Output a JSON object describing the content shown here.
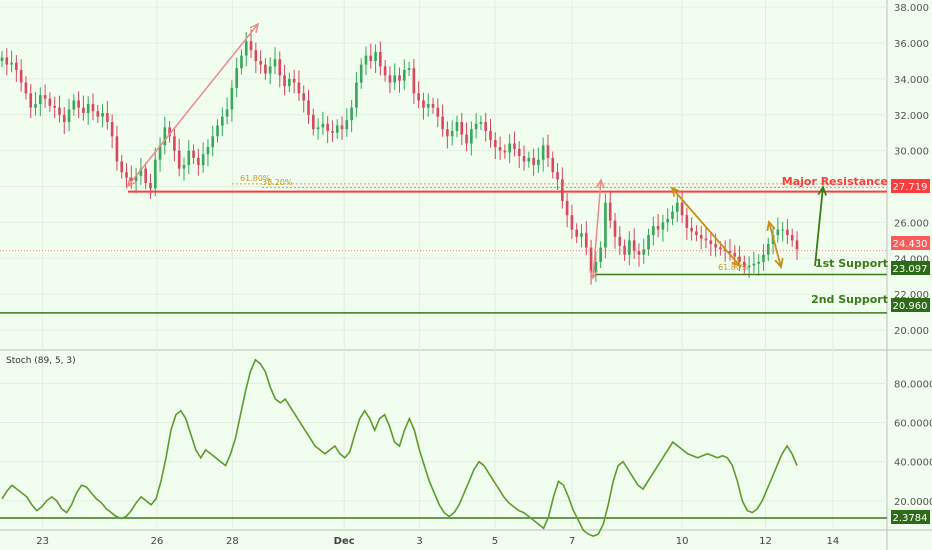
{
  "chart_data": {
    "type": "candlestick",
    "price_panel": {
      "y_ticks": [
        "38.000",
        "36.000",
        "34.000",
        "32.000",
        "30.000",
        "28.000",
        "26.000",
        "24.000",
        "22.000",
        "20.000"
      ],
      "ylim": [
        19.0,
        38.4
      ],
      "current_price": 24.43,
      "series_close": [
        35.2,
        34.8,
        34.9,
        34.5,
        33.8,
        33.2,
        32.4,
        32.6,
        33.1,
        32.9,
        32.5,
        32.4,
        32.0,
        31.6,
        32.3,
        32.8,
        32.4,
        32.1,
        32.6,
        32.2,
        31.9,
        32.1,
        31.6,
        30.8,
        29.4,
        28.8,
        28.5,
        28.3,
        28.6,
        29.0,
        28.2,
        27.9,
        29.5,
        30.3,
        31.3,
        30.8,
        30.0,
        29.0,
        29.2,
        30.0,
        29.6,
        29.2,
        29.8,
        30.2,
        30.8,
        31.4,
        31.9,
        32.3,
        33.5,
        34.6,
        35.3,
        36.1,
        35.6,
        35.0,
        34.8,
        34.3,
        34.7,
        35.1,
        34.2,
        33.6,
        34.0,
        33.8,
        33.2,
        32.8,
        32.0,
        31.2,
        31.3,
        31.5,
        31.1,
        31.0,
        31.4,
        31.2,
        31.7,
        32.4,
        33.8,
        34.8,
        35.3,
        35.0,
        35.5,
        34.7,
        34.2,
        33.8,
        34.2,
        33.9,
        34.5,
        34.6,
        33.2,
        32.8,
        32.4,
        32.6,
        32.4,
        31.9,
        31.2,
        30.8,
        31.1,
        31.6,
        30.9,
        30.4,
        31.2,
        31.5,
        31.6,
        31.1,
        30.6,
        30.2,
        30.0,
        29.9,
        30.4,
        30.1,
        29.7,
        29.4,
        29.6,
        29.2,
        29.5,
        30.3,
        29.6,
        28.8,
        28.4,
        27.2,
        26.4,
        25.6,
        25.2,
        25.4,
        24.6,
        23.2,
        23.8,
        24.6,
        27.1,
        26.1,
        25.2,
        24.7,
        24.2,
        25.0,
        24.4,
        24.2,
        24.5,
        25.3,
        25.8,
        25.6,
        26.0,
        26.2,
        26.6,
        27.1,
        26.4,
        25.7,
        25.5,
        25.3,
        25.1,
        25.0,
        24.8,
        24.6,
        24.5,
        24.4,
        24.3,
        24.1,
        23.8,
        23.5,
        23.6,
        23.7,
        23.8,
        24.2,
        24.8,
        25.3,
        25.6,
        25.6,
        25.3,
        25.0,
        24.5
      ],
      "levels": [
        {
          "label": "Major Resistance",
          "value": 27.719,
          "badge": "27.719",
          "color": "#ff3b3b"
        },
        {
          "label": "1st Support",
          "value": 23.097,
          "badge": "23.097",
          "color": "#3d7a1a"
        },
        {
          "label": "2nd Support",
          "value": 20.96,
          "badge": "20.960",
          "color": "#3d7a1a"
        }
      ],
      "fib_labels": [
        "61.80%",
        "38.20%",
        "61.80%"
      ],
      "price_badge": "24.430",
      "price_badge_color": "#ff5a5a"
    },
    "stoch_panel": {
      "title": "Stoch (89, 5, 3)",
      "y_ticks": [
        "80.0000",
        "60.0000",
        "40.0000",
        "20.0000"
      ],
      "ylim": [
        0,
        96
      ],
      "level_badge": "2.3784",
      "values": [
        21,
        25,
        28,
        26,
        24,
        22,
        18,
        15,
        17,
        20,
        22,
        20,
        16,
        14,
        18,
        24,
        28,
        27,
        24,
        21,
        19,
        16,
        14,
        12,
        11,
        12,
        15,
        19,
        22,
        20,
        18,
        21,
        30,
        42,
        56,
        64,
        66,
        62,
        54,
        46,
        42,
        46,
        44,
        42,
        40,
        38,
        44,
        52,
        64,
        76,
        86,
        92,
        90,
        86,
        78,
        72,
        70,
        72,
        68,
        64,
        60,
        56,
        52,
        48,
        46,
        44,
        46,
        48,
        44,
        42,
        45,
        54,
        62,
        66,
        62,
        56,
        62,
        64,
        58,
        50,
        48,
        56,
        62,
        56,
        46,
        38,
        30,
        24,
        18,
        14,
        12,
        14,
        18,
        24,
        30,
        36,
        40,
        38,
        34,
        30,
        26,
        22,
        19,
        17,
        15,
        14,
        12,
        10,
        8,
        6,
        12,
        22,
        30,
        28,
        22,
        15,
        10,
        5,
        3,
        2,
        3,
        8,
        18,
        30,
        38,
        40,
        36,
        32,
        28,
        26,
        30,
        34,
        38,
        42,
        46,
        50,
        48,
        46,
        44,
        43,
        42,
        43,
        44,
        43,
        42,
        43,
        42,
        38,
        30,
        20,
        15,
        14,
        16,
        20,
        26,
        32,
        38,
        44,
        48,
        44,
        38
      ]
    },
    "x_labels": [
      {
        "label": "23",
        "pos": 0.048
      },
      {
        "label": "26",
        "pos": 0.177
      },
      {
        "label": "28",
        "pos": 0.262
      },
      {
        "label": "Dec",
        "pos": 0.388
      },
      {
        "label": "3",
        "pos": 0.473
      },
      {
        "label": "5",
        "pos": 0.558
      },
      {
        "label": "7",
        "pos": 0.645
      },
      {
        "label": "10",
        "pos": 0.769
      },
      {
        "label": "12",
        "pos": 0.863
      },
      {
        "label": "14",
        "pos": 0.939
      }
    ],
    "colors": {
      "up": "#36a85a",
      "down": "#d9485f",
      "stoch": "#5c9c2c",
      "grid": "#e3eee0"
    }
  }
}
